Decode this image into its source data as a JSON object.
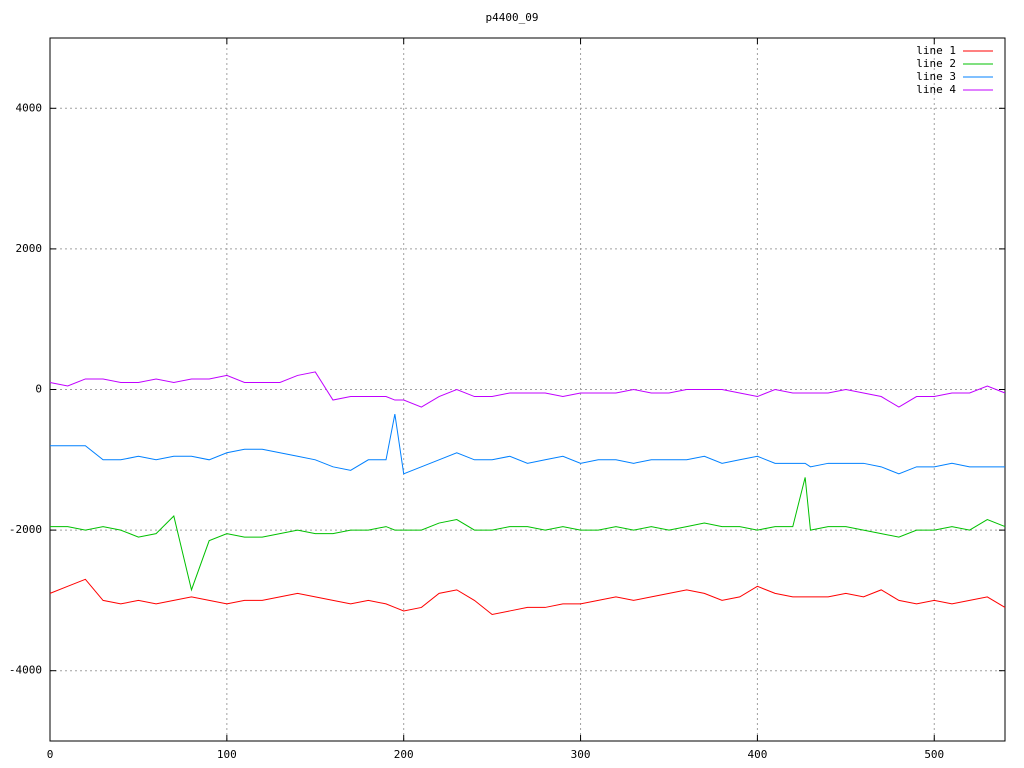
{
  "chart_data": {
    "type": "line",
    "title": "p4400_09",
    "x": [
      0,
      10,
      20,
      30,
      40,
      50,
      60,
      70,
      80,
      90,
      100,
      110,
      120,
      130,
      140,
      150,
      160,
      170,
      180,
      190,
      195,
      200,
      210,
      220,
      230,
      240,
      250,
      260,
      270,
      280,
      290,
      300,
      310,
      320,
      330,
      340,
      350,
      360,
      370,
      380,
      390,
      400,
      410,
      420,
      427,
      430,
      440,
      450,
      460,
      470,
      480,
      490,
      500,
      510,
      520,
      530,
      540
    ],
    "series": [
      {
        "name": "line 1",
        "color": "#ff0000",
        "values": [
          -2900,
          -2800,
          -2700,
          -3000,
          -3050,
          -3000,
          -3050,
          -3000,
          -2950,
          -3000,
          -3050,
          -3000,
          -3000,
          -2950,
          -2900,
          -2950,
          -3000,
          -3050,
          -3000,
          -3050,
          -3100,
          -3150,
          -3100,
          -2900,
          -2850,
          -3000,
          -3200,
          -3150,
          -3100,
          -3100,
          -3050,
          -3050,
          -3000,
          -2950,
          -3000,
          -2950,
          -2900,
          -2850,
          -2900,
          -3000,
          -2950,
          -2800,
          -2900,
          -2950,
          -2950,
          -2950,
          -2950,
          -2900,
          -2950,
          -2850,
          -3000,
          -3050,
          -3000,
          -3050,
          -3000,
          -2950,
          -3100
        ]
      },
      {
        "name": "line 2",
        "color": "#00c000",
        "values": [
          -1950,
          -1950,
          -2000,
          -1950,
          -2000,
          -2100,
          -2050,
          -1800,
          -2850,
          -2150,
          -2050,
          -2100,
          -2100,
          -2050,
          -2000,
          -2050,
          -2050,
          -2000,
          -2000,
          -1950,
          -2000,
          -2000,
          -2000,
          -1900,
          -1850,
          -2000,
          -2000,
          -1950,
          -1950,
          -2000,
          -1950,
          -2000,
          -2000,
          -1950,
          -2000,
          -1950,
          -2000,
          -1950,
          -1900,
          -1950,
          -1950,
          -2000,
          -1950,
          -1950,
          -1250,
          -2000,
          -1950,
          -1950,
          -2000,
          -2050,
          -2100,
          -2000,
          -2000,
          -1950,
          -2000,
          -1850,
          -1950
        ]
      },
      {
        "name": "line 3",
        "color": "#0080ff",
        "values": [
          -800,
          -800,
          -800,
          -1000,
          -1000,
          -950,
          -1000,
          -950,
          -950,
          -1000,
          -900,
          -850,
          -850,
          -900,
          -950,
          -1000,
          -1100,
          -1150,
          -1000,
          -1000,
          -350,
          -1200,
          -1100,
          -1000,
          -900,
          -1000,
          -1000,
          -950,
          -1050,
          -1000,
          -950,
          -1050,
          -1000,
          -1000,
          -1050,
          -1000,
          -1000,
          -1000,
          -950,
          -1050,
          -1000,
          -950,
          -1050,
          -1050,
          -1050,
          -1100,
          -1050,
          -1050,
          -1050,
          -1100,
          -1200,
          -1100,
          -1100,
          -1050,
          -1100,
          -1100,
          -1100
        ]
      },
      {
        "name": "line 4",
        "color": "#c000ff",
        "values": [
          100,
          50,
          150,
          150,
          100,
          100,
          150,
          100,
          150,
          150,
          200,
          100,
          100,
          100,
          200,
          250,
          -150,
          -100,
          -100,
          -100,
          -150,
          -150,
          -250,
          -100,
          0,
          -100,
          -100,
          -50,
          -50,
          -50,
          -100,
          -50,
          -50,
          -50,
          0,
          -50,
          -50,
          0,
          0,
          0,
          -50,
          -100,
          0,
          -50,
          -50,
          -50,
          -50,
          0,
          -50,
          -100,
          -250,
          -100,
          -100,
          -50,
          -50,
          50,
          -50
        ]
      }
    ],
    "xlim": [
      0,
      540
    ],
    "ylim": [
      -5000,
      5000
    ],
    "xticks": [
      0,
      100,
      200,
      300,
      400,
      500
    ],
    "yticks": [
      -4000,
      -2000,
      0,
      2000,
      4000
    ],
    "grid": true,
    "legend": "top-right"
  }
}
